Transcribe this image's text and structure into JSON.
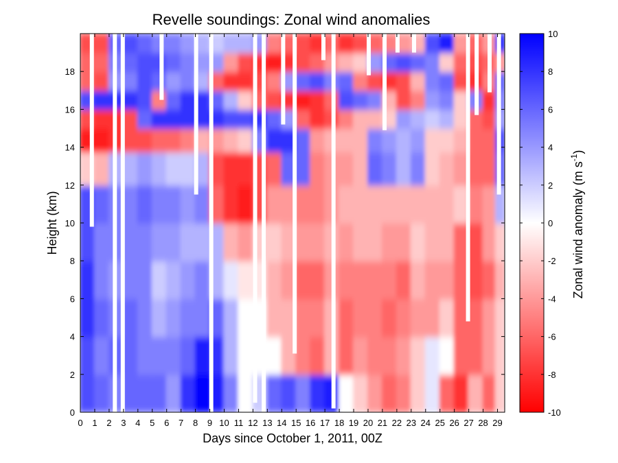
{
  "chart_data": {
    "type": "heatmap",
    "title": "Revelle soundings:  Zonal wind anomalies",
    "xlabel": "Days since October 1, 2011, 00Z",
    "ylabel": "Height (km)",
    "colorbar_label": "Zonal wind anomaly (m s",
    "colorbar_label_sup": "-1",
    "colorbar_label_end": ")",
    "xlim": [
      0,
      29.5
    ],
    "ylim": [
      0,
      20
    ],
    "clim": [
      -10,
      10
    ],
    "x_ticks": [
      "0",
      "1",
      "2",
      "3",
      "4",
      "5",
      "6",
      "7",
      "8",
      "9",
      "10",
      "11",
      "12",
      "13",
      "14",
      "15",
      "16",
      "17",
      "18",
      "19",
      "20",
      "21",
      "22",
      "23",
      "24",
      "25",
      "26",
      "27",
      "28",
      "29"
    ],
    "y_ticks": [
      "0",
      "2",
      "4",
      "6",
      "8",
      "10",
      "12",
      "14",
      "16",
      "18"
    ],
    "colorbar_ticks": [
      "-10",
      "-8",
      "-6",
      "-4",
      "-2",
      "0",
      "2",
      "4",
      "6",
      "8",
      "10"
    ],
    "colormap": {
      "negative": "#ff0000",
      "zero": "#ffffff",
      "positive": "#0000ff"
    },
    "anomaly_grid": {
      "x_days": [
        0.5,
        1.5,
        2.5,
        3.5,
        4.5,
        5.5,
        6.5,
        7.5,
        8.5,
        9.5,
        10.5,
        11.5,
        12.5,
        13.5,
        14.5,
        15.5,
        16.5,
        17.5,
        18.5,
        19.5,
        20.5,
        21.5,
        22.5,
        23.5,
        24.5,
        25.5,
        26.5,
        27.5,
        28.5,
        29.25
      ],
      "z_km": [
        1,
        3,
        5,
        7,
        9,
        11,
        13,
        14.5,
        15.5,
        16.5,
        17.5,
        18.5,
        19.5
      ],
      "u_anomaly": [
        [
          7,
          6,
          5,
          6,
          6,
          6,
          4,
          8,
          10,
          9,
          5,
          0,
          2,
          6,
          7,
          5,
          8,
          9,
          0,
          -2,
          -4,
          -6,
          -5,
          -2,
          1,
          -6,
          -8,
          -3,
          -6,
          -2
        ],
        [
          7,
          5,
          6,
          6,
          5,
          5,
          5,
          6,
          9,
          8,
          3,
          0,
          0,
          0,
          -3,
          -5,
          -6,
          -3,
          -6,
          -4,
          -5,
          -5,
          -4,
          -2,
          1,
          0,
          -6,
          -6,
          -4,
          -2
        ],
        [
          8,
          6,
          5,
          6,
          5,
          3,
          4,
          5,
          5,
          6,
          3,
          0,
          0,
          -3,
          -3,
          -5,
          -5,
          -3,
          -6,
          -5,
          -5,
          -6,
          -5,
          -4,
          -4,
          -2,
          -6,
          -6,
          -4,
          -2
        ],
        [
          8,
          5,
          4,
          5,
          5,
          2,
          3,
          4,
          5,
          3,
          1,
          -1,
          -1,
          -3,
          -4,
          -6,
          -6,
          -4,
          -5,
          -5,
          -5,
          -5,
          -6,
          -3,
          -4,
          -4,
          -6,
          -7,
          -6,
          -3
        ],
        [
          7,
          5,
          5,
          5,
          5,
          4,
          4,
          3,
          3,
          3,
          -3,
          -4,
          -2,
          -2,
          -3,
          -4,
          -4,
          -3,
          -4,
          -3,
          -3,
          -4,
          -4,
          -2,
          -3,
          -3,
          -6,
          -7,
          -4,
          -2
        ],
        [
          7,
          6,
          5,
          5,
          6,
          5,
          5,
          4,
          5,
          -6,
          -8,
          -9,
          -7,
          -4,
          -4,
          -5,
          -5,
          -4,
          -3,
          -3,
          -3,
          -3,
          -3,
          -3,
          -3,
          -3,
          -2,
          -5,
          -4,
          3
        ],
        [
          -2,
          -3,
          3,
          3,
          4,
          3,
          2,
          2,
          3,
          -7,
          -8,
          -8,
          -7,
          -6,
          6,
          6,
          -5,
          -4,
          -4,
          -3,
          6,
          5,
          3,
          5,
          -2,
          -3,
          -4,
          -6,
          -6,
          6
        ],
        [
          -9,
          -9,
          -8,
          -7,
          -7,
          -6,
          -6,
          -5,
          -3,
          -4,
          -3,
          -2,
          5,
          8,
          8,
          6,
          -4,
          -3,
          -3,
          -3,
          5,
          4,
          3,
          4,
          -2,
          -2,
          -3,
          -6,
          -6,
          7
        ],
        [
          -7,
          -8,
          -8,
          -7,
          6,
          8,
          8,
          8,
          8,
          8,
          7,
          7,
          8,
          6,
          4,
          -6,
          -8,
          -7,
          -5,
          -3,
          -3,
          -2,
          4,
          3,
          2,
          3,
          -2,
          -6,
          -7,
          4
        ],
        [
          7,
          8,
          8,
          8,
          7,
          -5,
          6,
          8,
          8,
          6,
          3,
          -2,
          -6,
          -7,
          -8,
          -9,
          -8,
          -6,
          7,
          6,
          5,
          -3,
          -7,
          -5,
          4,
          5,
          -2,
          5,
          -8,
          5
        ],
        [
          -6,
          -7,
          4,
          5,
          7,
          6,
          4,
          5,
          3,
          -6,
          -8,
          -8,
          -7,
          -5,
          4,
          6,
          7,
          5,
          6,
          -5,
          -7,
          -8,
          -7,
          -3,
          5,
          6,
          -7,
          -8,
          -5,
          6
        ],
        [
          -6,
          -6,
          5,
          6,
          7,
          7,
          6,
          5,
          4,
          4,
          -4,
          -7,
          -8,
          -9,
          -8,
          -7,
          -6,
          -4,
          -3,
          -2,
          4,
          6,
          7,
          6,
          5,
          -2,
          -6,
          -7,
          -6,
          -4
        ],
        [
          -7,
          -7,
          6,
          7,
          6,
          5,
          5,
          4,
          3,
          2,
          3,
          3,
          4,
          -5,
          -6,
          -7,
          -8,
          -6,
          -8,
          -7,
          -6,
          -5,
          -4,
          -3,
          7,
          9,
          -4,
          -6,
          -4,
          8
        ]
      ]
    },
    "data_gaps": [
      {
        "day": 0.8,
        "from_km": 9.8,
        "to_km": 20
      },
      {
        "day": 2.4,
        "from_km": 0,
        "to_km": 20
      },
      {
        "day": 2.95,
        "from_km": 0,
        "to_km": 20
      },
      {
        "day": 5.65,
        "from_km": 16.5,
        "to_km": 20
      },
      {
        "day": 8.05,
        "from_km": 11.5,
        "to_km": 20
      },
      {
        "day": 9.1,
        "from_km": 0,
        "to_km": 20
      },
      {
        "day": 12.15,
        "from_km": 0.5,
        "to_km": 20
      },
      {
        "day": 12.75,
        "from_km": 0,
        "to_km": 20
      },
      {
        "day": 14.1,
        "from_km": 15.2,
        "to_km": 20
      },
      {
        "day": 14.9,
        "from_km": 3.1,
        "to_km": 20
      },
      {
        "day": 16.9,
        "from_km": 18.6,
        "to_km": 20
      },
      {
        "day": 17.6,
        "from_km": 0.2,
        "to_km": 20
      },
      {
        "day": 20.05,
        "from_km": 17.8,
        "to_km": 20
      },
      {
        "day": 21.15,
        "from_km": 14.9,
        "to_km": 20
      },
      {
        "day": 22.05,
        "from_km": 19.0,
        "to_km": 20
      },
      {
        "day": 23.2,
        "from_km": 19.0,
        "to_km": 20
      },
      {
        "day": 26.95,
        "from_km": 4.8,
        "to_km": 20
      },
      {
        "day": 27.55,
        "from_km": 15.7,
        "to_km": 20
      },
      {
        "day": 28.45,
        "from_km": 16.9,
        "to_km": 20
      },
      {
        "day": 29.1,
        "from_km": 11.5,
        "to_km": 20
      }
    ]
  }
}
